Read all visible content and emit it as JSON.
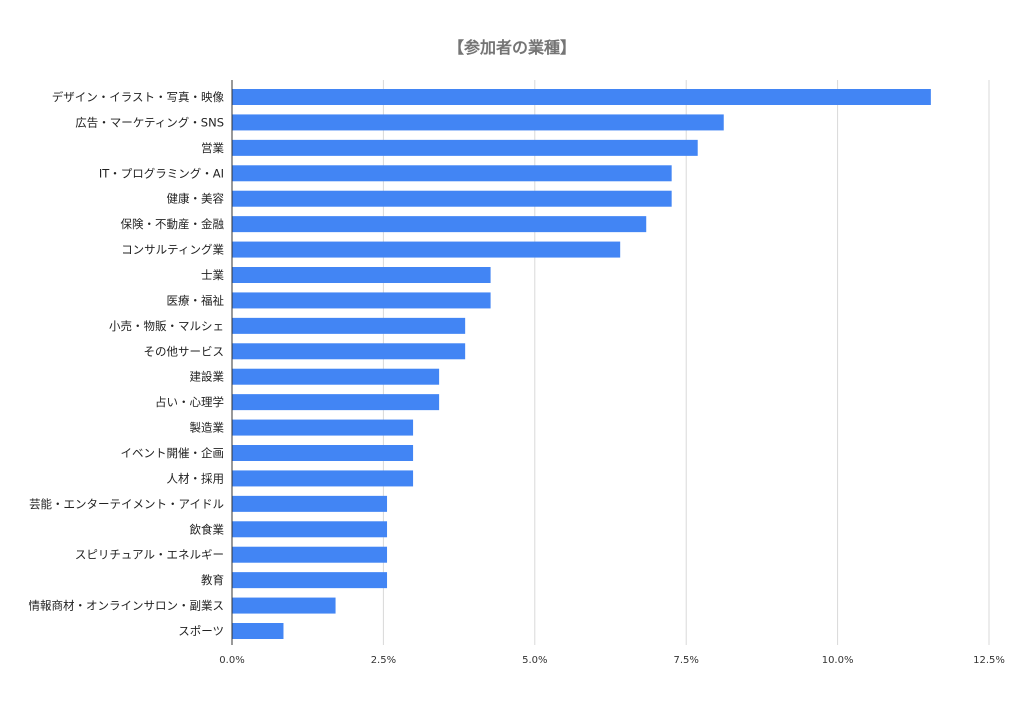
{
  "chart_data": {
    "type": "bar",
    "orientation": "horizontal",
    "title": "【参加者の業種】",
    "xlabel": "",
    "ylabel": "",
    "xlim": [
      0,
      12.5
    ],
    "x_ticks": [
      "0.0%",
      "2.5%",
      "5.0%",
      "7.5%",
      "10.0%",
      "12.5%"
    ],
    "grid": true,
    "bar_color": "#4285f4",
    "categories": [
      "デザイン・イラスト・写真・映像",
      "広告・マーケティング・SNS",
      "営業",
      "IT・プログラミング・AI",
      "健康・美容",
      "保険・不動産・金融",
      "コンサルティング業",
      "士業",
      "医療・福祉",
      "小売・物販・マルシェ",
      "その他サービス",
      "建設業",
      "占い・心理学",
      "製造業",
      "イベント開催・企画",
      "人材・採用",
      "芸能・エンターテイメント・アイドル",
      "飲食業",
      "スピリチュアル・エネルギー",
      "教育",
      "情報商材・オンラインサロン・副業ス",
      "スポーツ"
    ],
    "values": [
      11.54,
      8.12,
      7.69,
      7.26,
      7.26,
      6.84,
      6.41,
      4.27,
      4.27,
      3.85,
      3.85,
      3.42,
      3.42,
      2.99,
      2.99,
      2.99,
      2.56,
      2.56,
      2.56,
      2.56,
      1.71,
      0.85
    ]
  }
}
